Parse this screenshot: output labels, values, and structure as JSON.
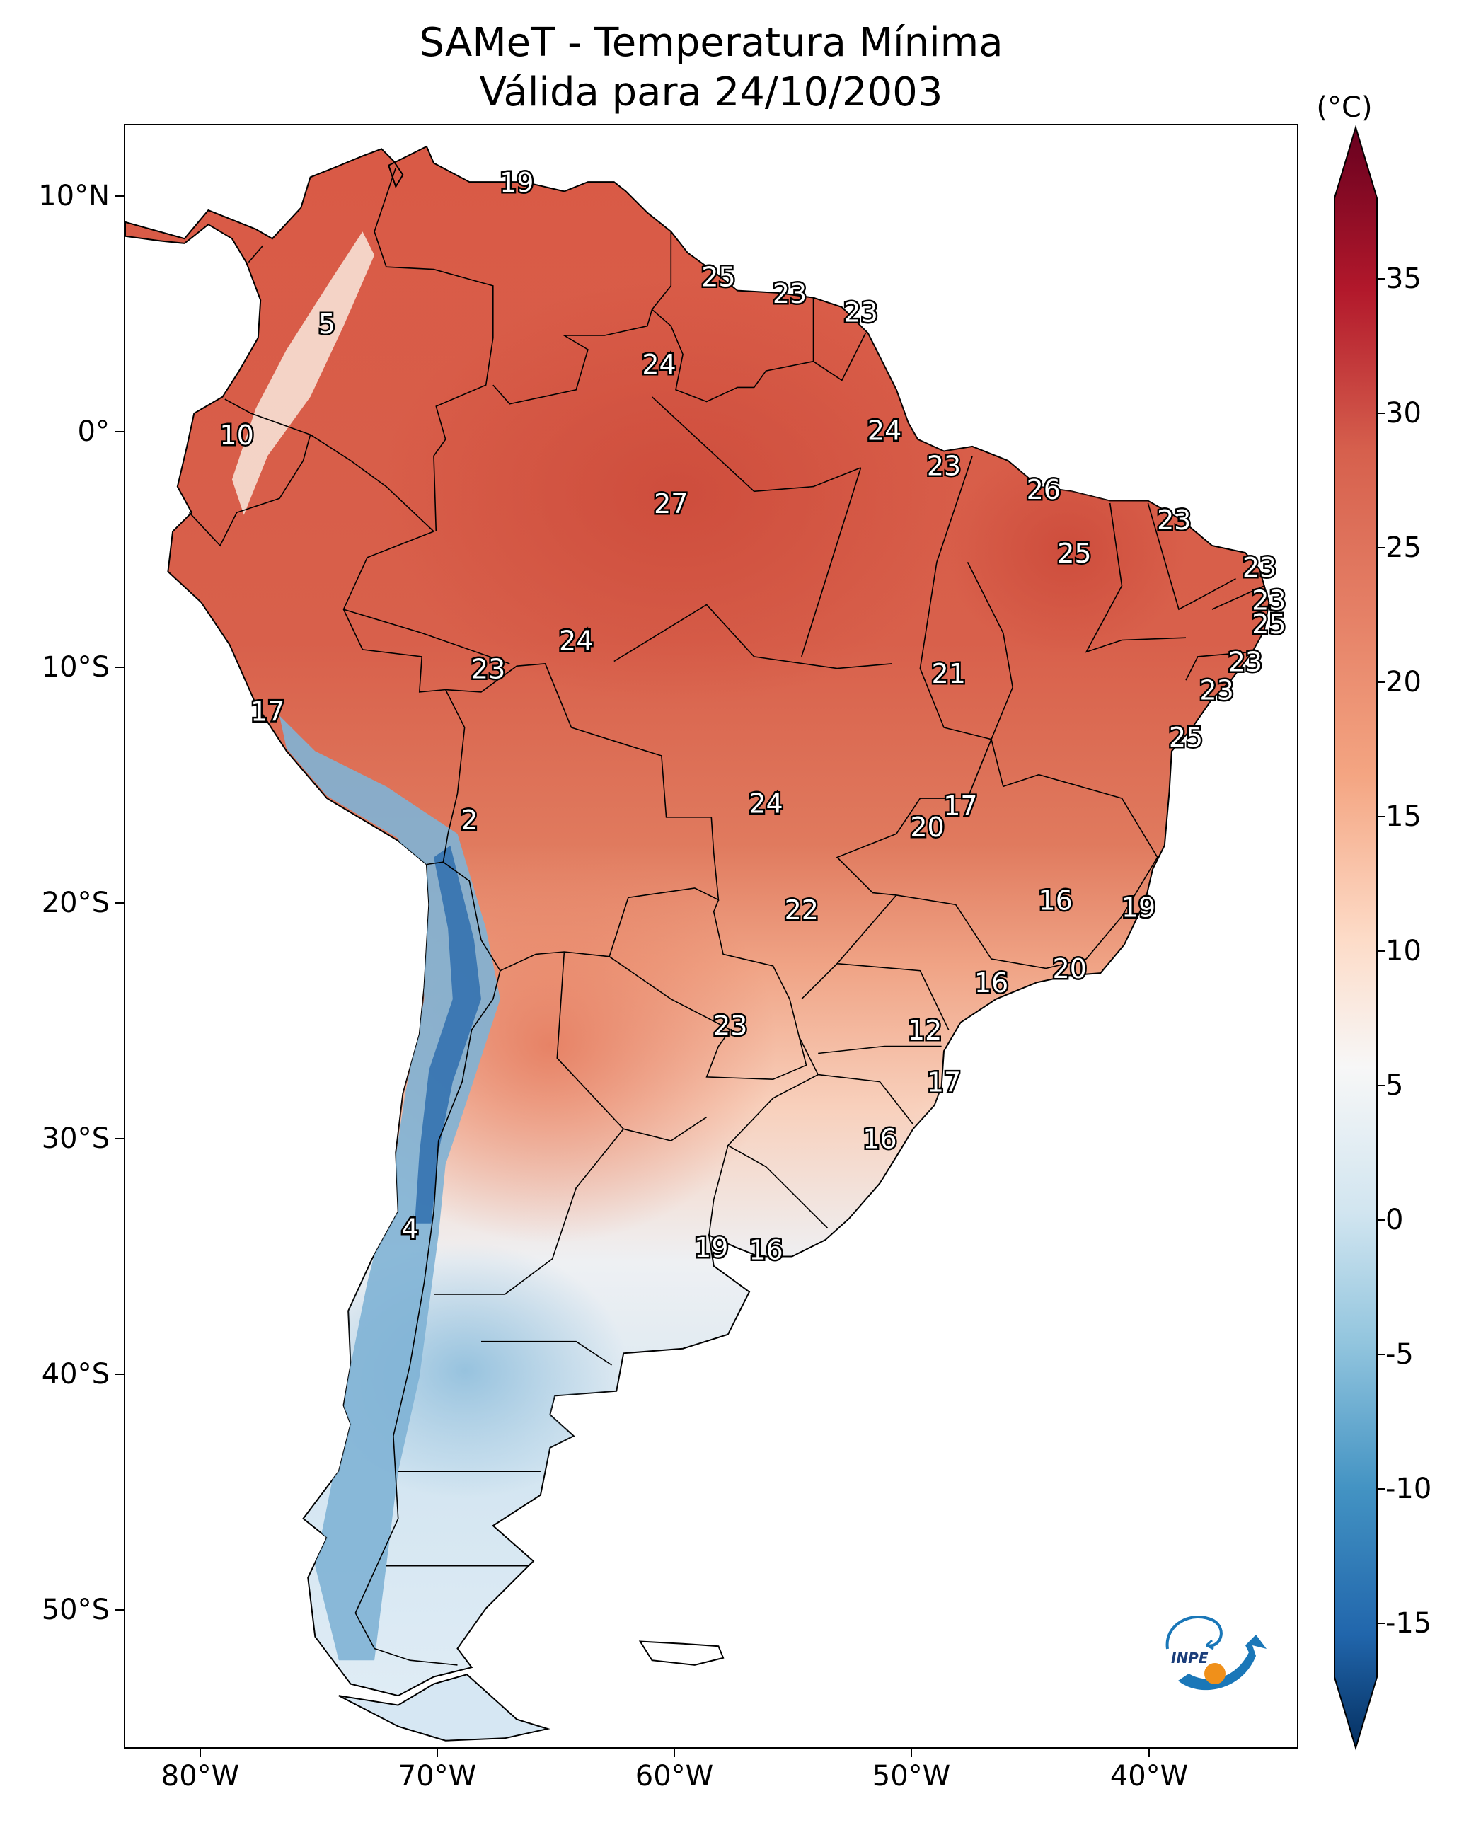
{
  "title": {
    "line1": "SAMeT - Temperatura Mínima",
    "line2": "Válida para 24/10/2003"
  },
  "map": {
    "lon_range": [
      -83,
      -33.5
    ],
    "lat_range": [
      -55.8,
      13
    ],
    "lat_ticks": [
      "10°N",
      "0°",
      "10°S",
      "20°S",
      "30°S",
      "40°S",
      "50°S"
    ],
    "lon_ticks": [
      "80°W",
      "70°W",
      "60°W",
      "50°W",
      "40°W"
    ],
    "station_labels": [
      {
        "text": "19",
        "lon": -66.5,
        "lat": 10.5
      },
      {
        "text": "5",
        "lon": -74.5,
        "lat": 4.5
      },
      {
        "text": "25",
        "lon": -58.0,
        "lat": 6.5
      },
      {
        "text": "23",
        "lon": -55.0,
        "lat": 5.8
      },
      {
        "text": "23",
        "lon": -52.0,
        "lat": 5.0
      },
      {
        "text": "24",
        "lon": -60.5,
        "lat": 2.8
      },
      {
        "text": "10",
        "lon": -78.3,
        "lat": -0.2
      },
      {
        "text": "24",
        "lon": -51.0,
        "lat": 0.0
      },
      {
        "text": "23",
        "lon": -48.5,
        "lat": -1.5
      },
      {
        "text": "27",
        "lon": -60.0,
        "lat": -3.1
      },
      {
        "text": "26",
        "lon": -44.3,
        "lat": -2.5
      },
      {
        "text": "23",
        "lon": -38.8,
        "lat": -3.8
      },
      {
        "text": "25",
        "lon": -43.0,
        "lat": -5.2
      },
      {
        "text": "23",
        "lon": -35.2,
        "lat": -5.8
      },
      {
        "text": "23",
        "lon": -34.8,
        "lat": -7.2
      },
      {
        "text": "25",
        "lon": -34.8,
        "lat": -8.2
      },
      {
        "text": "24",
        "lon": -64.0,
        "lat": -8.9
      },
      {
        "text": "23",
        "lon": -67.7,
        "lat": -10.1
      },
      {
        "text": "21",
        "lon": -48.3,
        "lat": -10.3
      },
      {
        "text": "23",
        "lon": -35.8,
        "lat": -9.8
      },
      {
        "text": "23",
        "lon": -37.0,
        "lat": -11.0
      },
      {
        "text": "17",
        "lon": -77.0,
        "lat": -11.9
      },
      {
        "text": "25",
        "lon": -38.3,
        "lat": -13.0
      },
      {
        "text": "24",
        "lon": -56.0,
        "lat": -15.8
      },
      {
        "text": "17",
        "lon": -47.8,
        "lat": -15.9
      },
      {
        "text": "2",
        "lon": -68.5,
        "lat": -16.5
      },
      {
        "text": "20",
        "lon": -49.2,
        "lat": -16.8
      },
      {
        "text": "16",
        "lon": -43.8,
        "lat": -19.9
      },
      {
        "text": "19",
        "lon": -40.3,
        "lat": -20.2
      },
      {
        "text": "22",
        "lon": -54.5,
        "lat": -20.3
      },
      {
        "text": "20",
        "lon": -43.2,
        "lat": -22.8
      },
      {
        "text": "16",
        "lon": -46.5,
        "lat": -23.4
      },
      {
        "text": "23",
        "lon": -57.5,
        "lat": -25.2
      },
      {
        "text": "12",
        "lon": -49.3,
        "lat": -25.4
      },
      {
        "text": "17",
        "lon": -48.5,
        "lat": -27.6
      },
      {
        "text": "16",
        "lon": -51.2,
        "lat": -30.0
      },
      {
        "text": "4",
        "lon": -71.0,
        "lat": -33.8
      },
      {
        "text": "19",
        "lon": -58.3,
        "lat": -34.6
      },
      {
        "text": "16",
        "lon": -56.0,
        "lat": -34.7
      }
    ]
  },
  "colorbar": {
    "unit": "(°C)",
    "ticks": [
      "35",
      "30",
      "25",
      "20",
      "15",
      "10",
      "5",
      "0",
      "-5",
      "-10",
      "-15"
    ],
    "range": [
      -17,
      38
    ],
    "colors": {
      "min": "#053061",
      "blue_dark": "#2166ac",
      "blue": "#4393c3",
      "blue_light": "#92c5de",
      "blue_pale": "#d1e5f0",
      "white": "#f7f7f7",
      "red_pale": "#fddbc7",
      "red_light": "#f4a582",
      "red": "#d6604d",
      "red_dark": "#b2182b",
      "max": "#67001f"
    }
  },
  "logo": {
    "text": "INPE"
  }
}
